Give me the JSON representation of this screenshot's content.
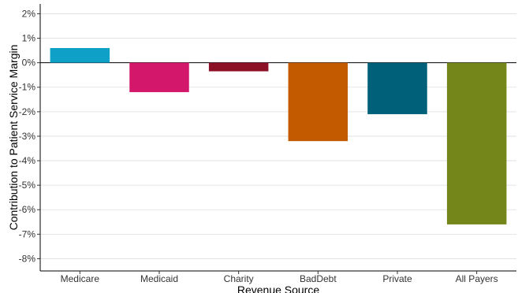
{
  "chart_data": {
    "type": "bar",
    "title": "",
    "xlabel": "Revenue Source",
    "ylabel": "Contribution to Patient Service Margin",
    "categories": [
      "Medicare",
      "Medicaid",
      "Charity",
      "BadDebt",
      "Private",
      "All Payers"
    ],
    "values": [
      0.6,
      -1.2,
      -0.35,
      -3.2,
      -2.1,
      -6.6
    ],
    "value_unit": "%",
    "colors": [
      "#0fa0c8",
      "#d3176a",
      "#8c1026",
      "#c45a00",
      "#00607a",
      "#748619"
    ],
    "ylim": [
      -8.5,
      2.4
    ],
    "y_ticks": [
      2,
      1,
      0,
      -1,
      -2,
      -3,
      -4,
      -5,
      -6,
      -7,
      -8
    ],
    "y_tick_labels": [
      "2%",
      "1%",
      "0%",
      "-1%",
      "-2%",
      "-3%",
      "-4%",
      "-5%",
      "-6%",
      "-7%",
      "-8%"
    ],
    "grid": true,
    "legend": "none"
  }
}
